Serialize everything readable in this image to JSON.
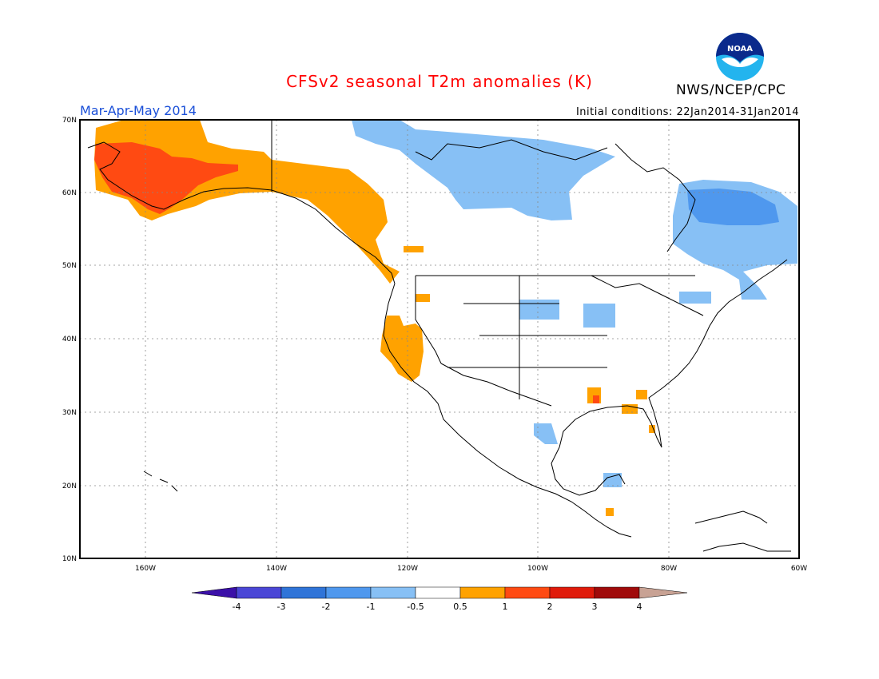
{
  "title": "CFSv2 seasonal T2m anomalies (K)",
  "agency": "NWS/NCEP/CPC",
  "season": "Mar-Apr-May 2014",
  "initial_conditions": "Initial conditions: 22Jan2014-31Jan2014",
  "logo_text": "NOAA",
  "colors": {
    "title": "#ff0000",
    "season": "#1a4fd8",
    "neg4": "#3b10a8",
    "neg3": "#4a46d6",
    "neg2": "#2f74d8",
    "neg1": "#4f98ee",
    "neg05": "#87c0f5",
    "pos05": "#ffa200",
    "pos1": "#ff4a12",
    "pos2": "#e01a0a",
    "pos3": "#a00a0a",
    "pos4": "#c8a294"
  },
  "map": {
    "lat_range": [
      10,
      70
    ],
    "lon_range": [
      -170,
      -60
    ],
    "lat_labels": [
      "10N",
      "20N",
      "30N",
      "40N",
      "50N",
      "60N",
      "70N"
    ],
    "lon_labels": [
      "160W",
      "140W",
      "120W",
      "100W",
      "80W",
      "60W"
    ]
  },
  "chart_data": {
    "type": "heatmap",
    "title": "CFSv2 seasonal T2m anomalies (K)",
    "colorbar_levels": [
      "-4",
      "-3",
      "-2",
      "-1",
      "-0.5",
      "0.5",
      "1",
      "2",
      "3",
      "4"
    ],
    "regions": [
      {
        "area": "Alaska west",
        "anomaly_range": "1 to 2"
      },
      {
        "area": "Alaska / Yukon / Western Canada",
        "anomaly_range": "0.5 to 1"
      },
      {
        "area": "Pacific Northwest coast",
        "anomaly_range": "0.5 to 1"
      },
      {
        "area": "California / Nevada",
        "anomaly_range": "0.5 to 1"
      },
      {
        "area": "Northern Canada",
        "anomaly_range": "-1 to -0.5"
      },
      {
        "area": "Quebec / Labrador",
        "anomaly_range": "-2 to -0.5"
      },
      {
        "area": "Upper Midwest",
        "anomaly_range": "-1 to -0.5"
      },
      {
        "area": "Gulf coast",
        "anomaly_range": "0.5 to 2"
      },
      {
        "area": "Texas coast",
        "anomaly_range": "-1 to -0.5"
      },
      {
        "area": "Yucatan",
        "anomaly_range": "-1 to -0.5"
      }
    ]
  }
}
